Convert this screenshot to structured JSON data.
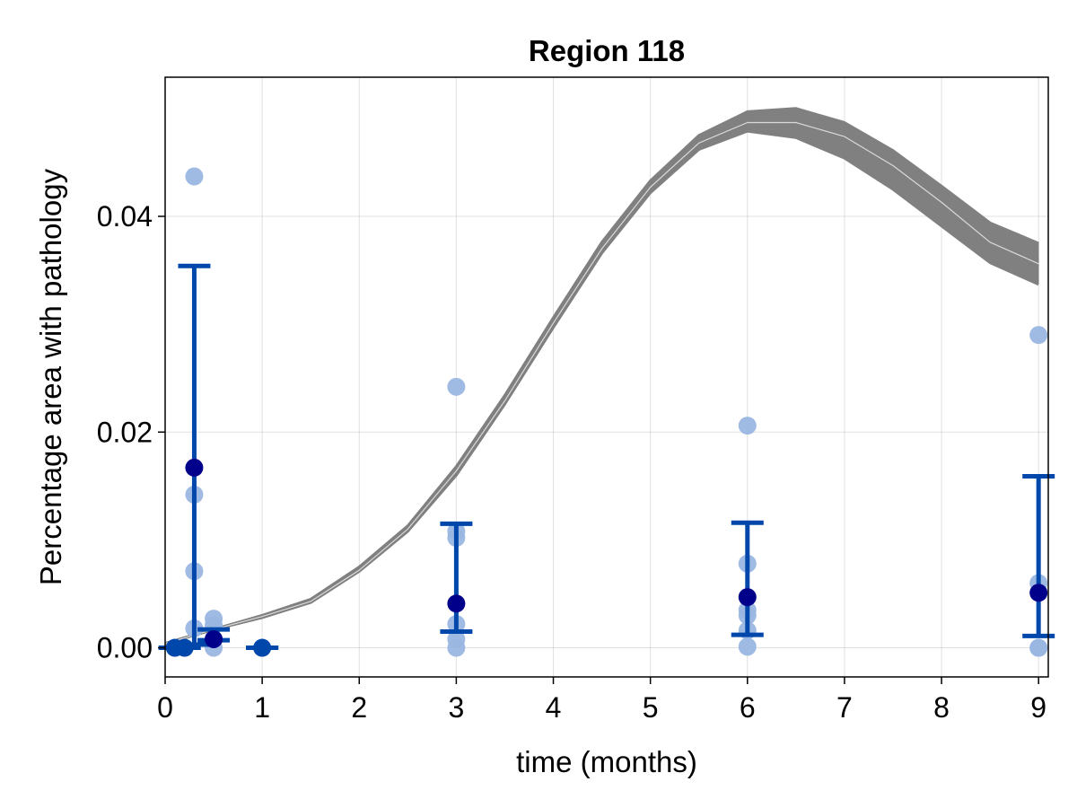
{
  "chart_data": {
    "type": "scatter",
    "title": "Region 118",
    "xlabel": "time (months)",
    "ylabel": "Percentage area with pathology",
    "xlim": [
      0,
      9.1
    ],
    "ylim": [
      -0.0027,
      0.0529
    ],
    "x_ticks": [
      0,
      1,
      2,
      3,
      4,
      5,
      6,
      7,
      8,
      9
    ],
    "x_tick_labels": [
      "0",
      "1",
      "2",
      "3",
      "4",
      "5",
      "6",
      "7",
      "8",
      "9"
    ],
    "y_ticks": [
      0.0,
      0.02,
      0.04
    ],
    "y_tick_labels": [
      "0.00",
      "0.02",
      "0.04"
    ],
    "grid": true,
    "colors": {
      "observations": "#9ab6e2",
      "means": "#00008b",
      "errorbars": "#0047ab",
      "model_curves": "#808080"
    },
    "model_curves": {
      "x": [
        0,
        0.5,
        1,
        1.5,
        2,
        2.5,
        3,
        3.5,
        4,
        4.5,
        5,
        5.5,
        6,
        6.5,
        7,
        7.5,
        8,
        8.5,
        9
      ],
      "upper": [
        0.0004,
        0.0017,
        0.003,
        0.0045,
        0.0075,
        0.0113,
        0.0168,
        0.0234,
        0.0306,
        0.0376,
        0.0433,
        0.0475,
        0.0497,
        0.05,
        0.0487,
        0.0461,
        0.0428,
        0.0394,
        0.0375
      ],
      "lower": [
        0.0004,
        0.0017,
        0.0028,
        0.0042,
        0.0071,
        0.0108,
        0.016,
        0.0226,
        0.0297,
        0.0366,
        0.0422,
        0.0462,
        0.0479,
        0.0473,
        0.0454,
        0.0425,
        0.0391,
        0.0357,
        0.0337
      ],
      "highlight": [
        0.0004,
        0.0017,
        0.0029,
        0.0043,
        0.0072,
        0.011,
        0.0164,
        0.0229,
        0.0301,
        0.037,
        0.0427,
        0.0468,
        0.0487,
        0.0487,
        0.0474,
        0.0447,
        0.0413,
        0.0376,
        0.0356
      ]
    },
    "observations": [
      {
        "x": 0.1,
        "y": 0.0
      },
      {
        "x": 0.2,
        "y": 0.0
      },
      {
        "x": 0.3,
        "y": 0.0437
      },
      {
        "x": 0.3,
        "y": 0.0142
      },
      {
        "x": 0.3,
        "y": 0.0071
      },
      {
        "x": 0.3,
        "y": 0.0018
      },
      {
        "x": 0.5,
        "y": 0.0027
      },
      {
        "x": 0.5,
        "y": 0.0021
      },
      {
        "x": 0.5,
        "y": 0.0008
      },
      {
        "x": 0.5,
        "y": 0.0
      },
      {
        "x": 1,
        "y": 0.0
      },
      {
        "x": 3,
        "y": 0.0242
      },
      {
        "x": 3,
        "y": 0.0108
      },
      {
        "x": 3,
        "y": 0.0102
      },
      {
        "x": 3,
        "y": 0.0022
      },
      {
        "x": 3,
        "y": 0.0008
      },
      {
        "x": 3,
        "y": 0.0
      },
      {
        "x": 6,
        "y": 0.0206
      },
      {
        "x": 6,
        "y": 0.0078
      },
      {
        "x": 6,
        "y": 0.0035
      },
      {
        "x": 6,
        "y": 0.003
      },
      {
        "x": 6,
        "y": 0.0016
      },
      {
        "x": 6,
        "y": 0.0001
      },
      {
        "x": 9,
        "y": 0.029
      },
      {
        "x": 9,
        "y": 0.006
      },
      {
        "x": 9,
        "y": 0.0
      },
      {
        "x": 9,
        "y": 0.0
      }
    ],
    "means": [
      {
        "x": 0.1,
        "y": 0.0,
        "low": 0.0,
        "high": 0.0
      },
      {
        "x": 0.2,
        "y": 0.0,
        "low": 0.0,
        "high": 0.0
      },
      {
        "x": 0.3,
        "y": 0.0167,
        "low": 0.0003,
        "high": 0.0354
      },
      {
        "x": 0.5,
        "y": 0.0008,
        "low": 0.0007,
        "high": 0.0017
      },
      {
        "x": 1,
        "y": 0.0,
        "low": 0.0,
        "high": 0.0
      },
      {
        "x": 3,
        "y": 0.0041,
        "low": 0.0015,
        "high": 0.0115
      },
      {
        "x": 6,
        "y": 0.0047,
        "low": 0.0012,
        "high": 0.0116
      },
      {
        "x": 9,
        "y": 0.0051,
        "low": 0.0011,
        "high": 0.0159
      }
    ]
  }
}
